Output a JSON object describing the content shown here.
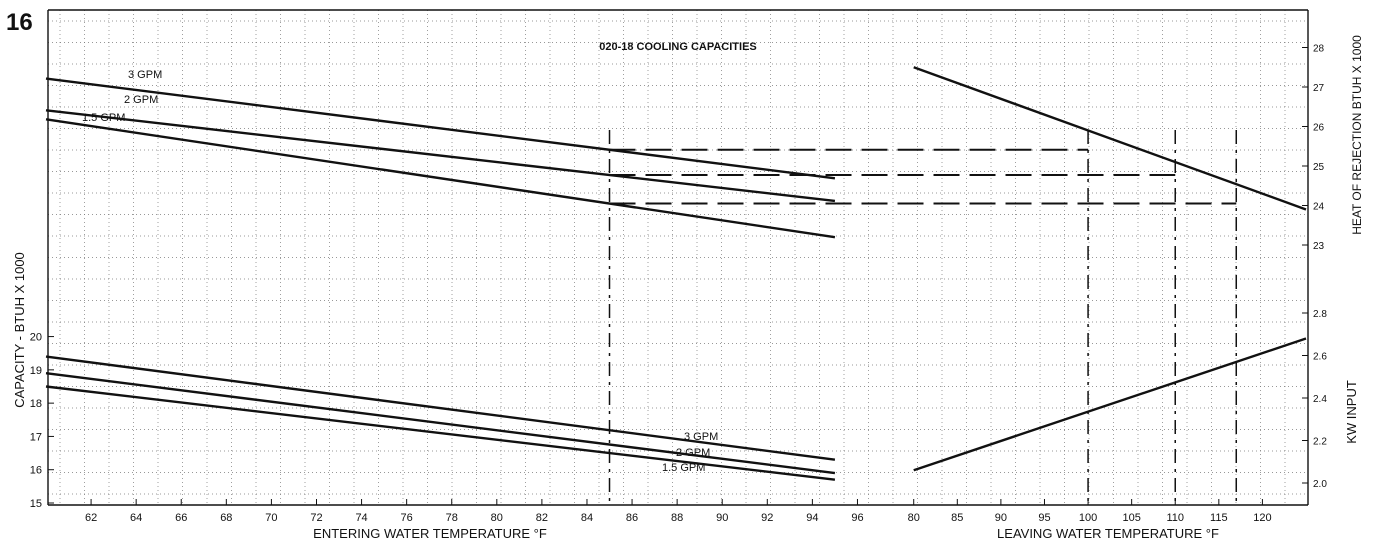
{
  "page_number": "16",
  "chart_data": {
    "type": "line",
    "title": "020-18 COOLING CAPACITIES",
    "left_panel": {
      "xlabel": "ENTERING WATER TEMPERATURE °F",
      "xlim": [
        60,
        97
      ],
      "xticks": [
        "62",
        "64",
        "66",
        "68",
        "70",
        "72",
        "74",
        "76",
        "78",
        "80",
        "82",
        "84",
        "86",
        "88",
        "90",
        "92",
        "94",
        "96"
      ],
      "ylabel": "CAPACITY - BTUH X 1000",
      "ylim": [
        15,
        22
      ],
      "yticks": [
        "15",
        "16",
        "17",
        "18",
        "19",
        "20"
      ],
      "capacity_series": [
        {
          "name": "3 GPM",
          "label": "3 GPM",
          "x": [
            60,
            95
          ],
          "y": [
            19.4,
            16.3
          ]
        },
        {
          "name": "2 GPM",
          "label": "2 GPM",
          "x": [
            60,
            95
          ],
          "y": [
            18.9,
            15.9
          ]
        },
        {
          "name": "1.5 GPM",
          "label": "1.5 GPM",
          "x": [
            60,
            95
          ],
          "y": [
            18.5,
            15.7
          ]
        }
      ],
      "heat_rejection_series": [
        {
          "name": "3 GPM",
          "label": "3 GPM",
          "x": [
            60,
            95
          ],
          "y": [
            27.4,
            25.2
          ]
        },
        {
          "name": "2 GPM",
          "label": "2 GPM",
          "x": [
            60,
            95
          ],
          "y": [
            26.7,
            24.7
          ]
        },
        {
          "name": "1.5 GPM",
          "label": "1.5 GPM",
          "x": [
            60,
            95
          ],
          "y": [
            26.5,
            23.9
          ]
        }
      ],
      "guide_x": 85
    },
    "right_panel": {
      "xlabel": "LEAVING WATER TEMPERATURE °F",
      "xlim": [
        79,
        125
      ],
      "xticks": [
        "80",
        "85",
        "90",
        "95",
        "100",
        "105",
        "110",
        "115",
        "120"
      ],
      "y2label_top": "HEAT OF REJECTION BTUH X 1000",
      "y2lim_top": [
        23,
        29
      ],
      "y2ticks_top": [
        "23",
        "24",
        "25",
        "26",
        "27",
        "28"
      ],
      "y2label_bottom": "KW INPUT",
      "y2lim_bottom": [
        2.0,
        2.8
      ],
      "y2ticks_bottom": [
        "2.0",
        "2.2",
        "2.4",
        "2.6",
        "2.8"
      ],
      "heat_line": {
        "x": [
          80,
          125
        ],
        "y": [
          27.5,
          23.9
        ]
      },
      "kw_line": {
        "x": [
          80,
          125
        ],
        "y": [
          2.06,
          2.68
        ]
      },
      "guide_x": [
        100,
        110,
        117
      ]
    },
    "grid": true
  }
}
